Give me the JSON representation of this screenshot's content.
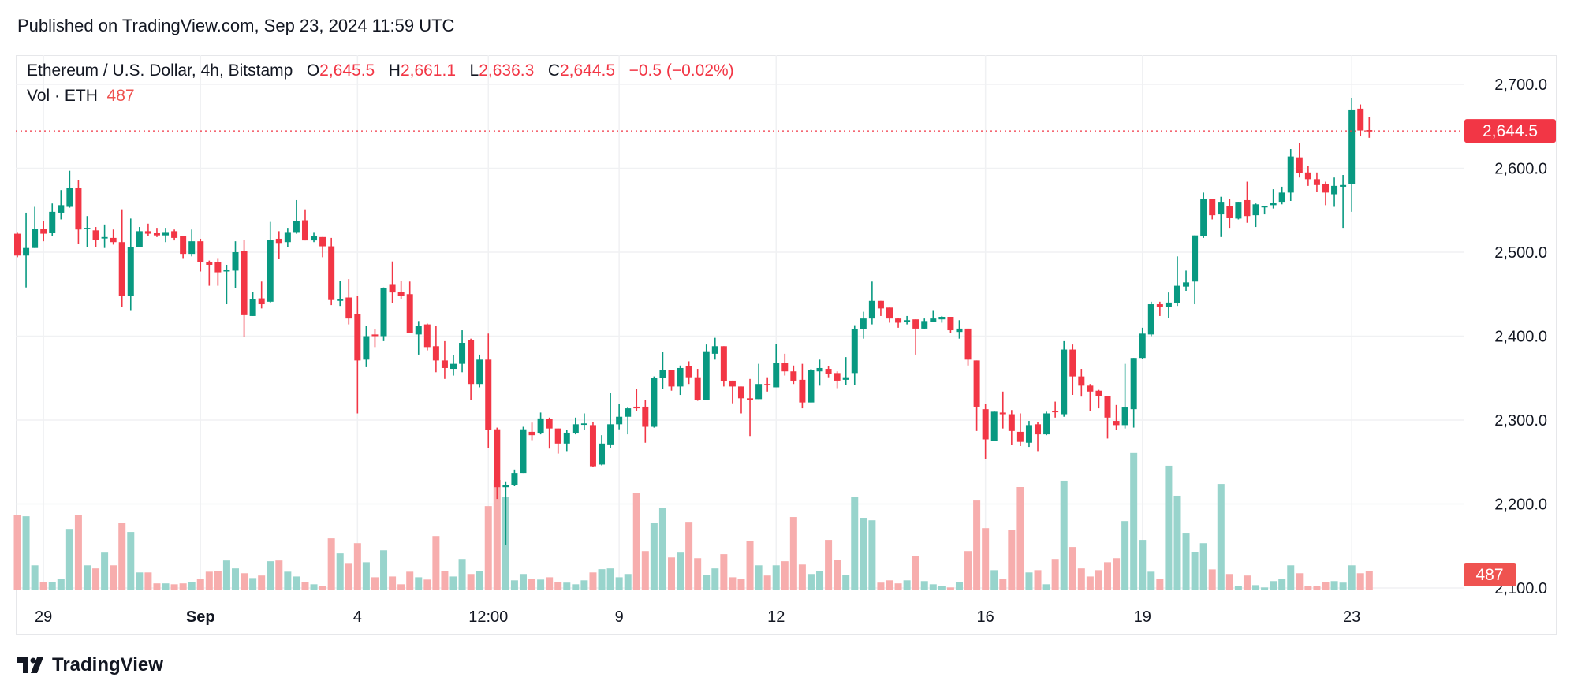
{
  "header": {
    "published": "Published on TradingView.com, Sep 23, 2024 11:59 UTC"
  },
  "legend": {
    "symbol": "Ethereum / U.S. Dollar, 4h, Bitstamp",
    "o_label": "O",
    "o_value": "2,645.5",
    "h_label": "H",
    "h_value": "2,661.1",
    "l_label": "L",
    "l_value": "2,636.3",
    "c_label": "C",
    "c_value": "2,644.5",
    "change": "−0.5 (−0.02%)",
    "vol_label": "Vol · ETH",
    "vol_value": "487"
  },
  "badges": {
    "last_price": "2,644.5",
    "last_volume": "487"
  },
  "logo": {
    "text": "TradingView"
  },
  "colors": {
    "up": "#089981",
    "down": "#f23645",
    "up_volume": "#92d2c9",
    "down_volume": "#f7a9a9",
    "grid": "#f0f1f3",
    "text": "#131722"
  },
  "chart_data": {
    "type": "candlestick",
    "interval": "4h",
    "last_price": 2644.5,
    "grid": true,
    "y_ticks": [
      "2,700.0",
      "2,600.0",
      "2,500.0",
      "2,400.0",
      "2,300.0",
      "2,200.0",
      "2,100.0"
    ],
    "y_tick_values": [
      2700,
      2600,
      2500,
      2400,
      2300,
      2200,
      2100
    ],
    "ylim": [
      2100,
      2700
    ],
    "x_ticks": [
      {
        "label": "29",
        "time": "08-29 00:00",
        "bold": false
      },
      {
        "label": "Sep",
        "time": "09-01 00:00",
        "bold": true
      },
      {
        "label": "4",
        "time": "09-04 00:00",
        "bold": false
      },
      {
        "label": "12:00",
        "time": "09-06 12:00",
        "bold": false
      },
      {
        "label": "9",
        "time": "09-09 00:00",
        "bold": false
      },
      {
        "label": "12",
        "time": "09-12 00:00",
        "bold": false
      },
      {
        "label": "16",
        "time": "09-16 00:00",
        "bold": false
      },
      {
        "label": "19",
        "time": "09-19 00:00",
        "bold": false
      },
      {
        "label": "23",
        "time": "09-23 00:00",
        "bold": false
      }
    ],
    "columns": [
      "time",
      "open",
      "high",
      "low",
      "close",
      "volume"
    ],
    "candles": [
      [
        "08-28 12:00",
        2522,
        2524,
        2494,
        2496,
        1945
      ],
      [
        "08-28 16:00",
        2496,
        2547,
        2458,
        2505,
        1904
      ],
      [
        "08-28 20:00",
        2505,
        2554,
        2505,
        2528,
        630
      ],
      [
        "08-29 00:00",
        2528,
        2537,
        2513,
        2522,
        200
      ],
      [
        "08-29 04:00",
        2523,
        2558,
        2519,
        2548,
        200
      ],
      [
        "08-29 08:00",
        2547,
        2574,
        2539,
        2556,
        280
      ],
      [
        "08-29 12:00",
        2554,
        2597,
        2553,
        2577,
        1575
      ],
      [
        "08-29 16:00",
        2577,
        2586,
        2510,
        2527,
        1945
      ],
      [
        "08-29 20:00",
        2528,
        2543,
        2506,
        2529,
        630
      ],
      [
        "08-30 00:00",
        2526,
        2530,
        2506,
        2515,
        550
      ],
      [
        "08-30 04:00",
        2517,
        2533,
        2505,
        2518,
        960
      ],
      [
        "08-30 08:00",
        2517,
        2527,
        2509,
        2512,
        630
      ],
      [
        "08-30 12:00",
        2512,
        2551,
        2435,
        2448,
        1740
      ],
      [
        "08-30 16:00",
        2448,
        2540,
        2431,
        2506,
        1495
      ],
      [
        "08-30 20:00",
        2506,
        2530,
        2506,
        2525,
        445
      ],
      [
        "08-31 00:00",
        2525,
        2534,
        2519,
        2522,
        445
      ],
      [
        "08-31 04:00",
        2523,
        2529,
        2518,
        2520,
        160
      ],
      [
        "08-31 08:00",
        2520,
        2529,
        2512,
        2524,
        160
      ],
      [
        "08-31 12:00",
        2525,
        2527,
        2514,
        2517,
        137
      ],
      [
        "08-31 16:00",
        2519,
        2519,
        2493,
        2498,
        160
      ],
      [
        "08-31 20:00",
        2498,
        2527,
        2495,
        2513,
        200
      ],
      [
        "09-01 00:00",
        2513,
        2516,
        2477,
        2488,
        280
      ],
      [
        "09-01 04:00",
        2488,
        2490,
        2460,
        2485,
        465
      ],
      [
        "09-01 08:00",
        2488,
        2493,
        2460,
        2476,
        485
      ],
      [
        "09-01 12:00",
        2477,
        2485,
        2438,
        2479,
        755
      ],
      [
        "09-01 16:00",
        2478,
        2513,
        2457,
        2500,
        550
      ],
      [
        "09-01 20:00",
        2501,
        2515,
        2399,
        2425,
        425
      ],
      [
        "09-02 00:00",
        2424,
        2453,
        2424,
        2444,
        300
      ],
      [
        "09-02 04:00",
        2445,
        2465,
        2433,
        2438,
        365
      ],
      [
        "09-02 08:00",
        2441,
        2536,
        2440,
        2515,
        735
      ],
      [
        "09-02 12:00",
        2516,
        2525,
        2492,
        2511,
        755
      ],
      [
        "09-02 16:00",
        2512,
        2529,
        2506,
        2524,
        465
      ],
      [
        "09-02 20:00",
        2524,
        2562,
        2522,
        2537,
        340
      ],
      [
        "09-03 00:00",
        2538,
        2551,
        2514,
        2514,
        200
      ],
      [
        "09-03 04:00",
        2514,
        2524,
        2512,
        2519,
        137
      ],
      [
        "09-03 08:00",
        2518,
        2518,
        2494,
        2507,
        95
      ],
      [
        "09-03 12:00",
        2507,
        2517,
        2437,
        2443,
        1330
      ],
      [
        "09-03 16:00",
        2442,
        2466,
        2436,
        2444,
        940
      ],
      [
        "09-03 20:00",
        2446,
        2468,
        2414,
        2421,
        690
      ],
      [
        "09-04 00:00",
        2426,
        2448,
        2308,
        2371,
        1205
      ],
      [
        "09-04 04:00",
        2372,
        2412,
        2363,
        2400,
        710
      ],
      [
        "09-04 08:00",
        2402,
        2408,
        2387,
        2400,
        320
      ],
      [
        "09-04 12:00",
        2400,
        2458,
        2394,
        2457,
        1020
      ],
      [
        "09-04 16:00",
        2462,
        2489,
        2439,
        2452,
        340
      ],
      [
        "09-04 20:00",
        2453,
        2466,
        2444,
        2448,
        137
      ],
      [
        "09-05 00:00",
        2450,
        2465,
        2404,
        2404,
        465
      ],
      [
        "09-05 04:00",
        2402,
        2418,
        2378,
        2412,
        320
      ],
      [
        "09-05 08:00",
        2414,
        2415,
        2383,
        2387,
        260
      ],
      [
        "09-05 12:00",
        2388,
        2412,
        2357,
        2371,
        1390
      ],
      [
        "09-05 16:00",
        2371,
        2394,
        2349,
        2362,
        485
      ],
      [
        "09-05 20:00",
        2361,
        2377,
        2353,
        2367,
        340
      ],
      [
        "09-06 00:00",
        2367,
        2407,
        2357,
        2392,
        795
      ],
      [
        "09-06 04:00",
        2395,
        2397,
        2324,
        2343,
        405
      ],
      [
        "09-06 08:00",
        2343,
        2378,
        2339,
        2372,
        485
      ],
      [
        "09-06 12:00",
        2372,
        2403,
        2267,
        2288,
        2170
      ],
      [
        "09-06 16:00",
        2289,
        2291,
        2206,
        2220,
        2850
      ],
      [
        "09-06 20:00",
        2220,
        2227,
        2151,
        2223,
        2400
      ],
      [
        "09-07 00:00",
        2223,
        2241,
        2222,
        2237,
        240
      ],
      [
        "09-07 04:00",
        2237,
        2292,
        2237,
        2289,
        405
      ],
      [
        "09-07 08:00",
        2286,
        2297,
        2276,
        2282,
        280
      ],
      [
        "09-07 12:00",
        2284,
        2309,
        2283,
        2302,
        260
      ],
      [
        "09-07 16:00",
        2301,
        2303,
        2266,
        2290,
        320
      ],
      [
        "09-07 20:00",
        2290,
        2290,
        2260,
        2272,
        200
      ],
      [
        "09-08 00:00",
        2272,
        2288,
        2263,
        2285,
        180
      ],
      [
        "09-08 04:00",
        2284,
        2303,
        2283,
        2295,
        137
      ],
      [
        "09-08 08:00",
        2295,
        2308,
        2288,
        2296,
        240
      ],
      [
        "09-08 12:00",
        2294,
        2298,
        2244,
        2245,
        445
      ],
      [
        "09-08 16:00",
        2247,
        2282,
        2246,
        2272,
        530
      ],
      [
        "09-08 20:00",
        2271,
        2332,
        2267,
        2295,
        550
      ],
      [
        "09-09 00:00",
        2295,
        2319,
        2289,
        2304,
        320
      ],
      [
        "09-09 04:00",
        2304,
        2315,
        2283,
        2314,
        405
      ],
      [
        "09-09 08:00",
        2316,
        2337,
        2311,
        2314,
        2520
      ],
      [
        "09-09 12:00",
        2316,
        2324,
        2273,
        2292,
        1000
      ],
      [
        "09-09 16:00",
        2292,
        2352,
        2291,
        2350,
        1740
      ],
      [
        "09-09 20:00",
        2350,
        2381,
        2337,
        2360,
        2130
      ],
      [
        "09-10 00:00",
        2360,
        2360,
        2335,
        2340,
        835
      ],
      [
        "09-10 04:00",
        2340,
        2365,
        2330,
        2362,
        960
      ],
      [
        "09-10 08:00",
        2364,
        2370,
        2343,
        2351,
        1760
      ],
      [
        "09-10 12:00",
        2351,
        2361,
        2323,
        2324,
        815
      ],
      [
        "09-10 16:00",
        2324,
        2390,
        2324,
        2382,
        385
      ],
      [
        "09-10 20:00",
        2379,
        2398,
        2372,
        2388,
        550
      ],
      [
        "09-11 00:00",
        2388,
        2388,
        2340,
        2346,
        920
      ],
      [
        "09-11 04:00",
        2347,
        2347,
        2320,
        2340,
        320
      ],
      [
        "09-11 08:00",
        2340,
        2340,
        2308,
        2326,
        280
      ],
      [
        "09-11 12:00",
        2326,
        2349,
        2281,
        2325,
        1265
      ],
      [
        "09-11 16:00",
        2325,
        2367,
        2325,
        2343,
        630
      ],
      [
        "09-11 20:00",
        2343,
        2351,
        2334,
        2342,
        365
      ],
      [
        "09-12 00:00",
        2339,
        2391,
        2339,
        2368,
        630
      ],
      [
        "09-12 04:00",
        2368,
        2379,
        2353,
        2358,
        735
      ],
      [
        "09-12 08:00",
        2358,
        2365,
        2343,
        2347,
        1885
      ],
      [
        "09-12 12:00",
        2348,
        2367,
        2314,
        2321,
        650
      ],
      [
        "09-12 16:00",
        2321,
        2361,
        2321,
        2360,
        405
      ],
      [
        "09-12 20:00",
        2358,
        2372,
        2341,
        2362,
        485
      ],
      [
        "09-13 00:00",
        2361,
        2364,
        2351,
        2355,
        1290
      ],
      [
        "09-13 04:00",
        2356,
        2358,
        2338,
        2347,
        775
      ],
      [
        "09-13 08:00",
        2348,
        2375,
        2342,
        2351,
        385
      ],
      [
        "09-13 12:00",
        2356,
        2413,
        2342,
        2408,
        2400
      ],
      [
        "09-13 16:00",
        2408,
        2429,
        2397,
        2421,
        1865
      ],
      [
        "09-13 20:00",
        2421,
        2465,
        2414,
        2442,
        1800
      ],
      [
        "09-14 00:00",
        2442,
        2442,
        2424,
        2433,
        180
      ],
      [
        "09-14 04:00",
        2434,
        2434,
        2416,
        2421,
        240
      ],
      [
        "09-14 08:00",
        2421,
        2422,
        2410,
        2416,
        160
      ],
      [
        "09-14 12:00",
        2417,
        2424,
        2414,
        2419,
        240
      ],
      [
        "09-14 16:00",
        2420,
        2420,
        2378,
        2409,
        875
      ],
      [
        "09-14 20:00",
        2409,
        2421,
        2408,
        2418,
        220
      ],
      [
        "09-15 00:00",
        2417,
        2431,
        2417,
        2421,
        137
      ],
      [
        "09-15 04:00",
        2420,
        2424,
        2416,
        2423,
        95
      ],
      [
        "09-15 08:00",
        2423,
        2423,
        2404,
        2407,
        55
      ],
      [
        "09-15 12:00",
        2405,
        2419,
        2397,
        2409,
        200
      ],
      [
        "09-15 16:00",
        2409,
        2409,
        2365,
        2372,
        1000
      ],
      [
        "09-15 20:00",
        2371,
        2371,
        2287,
        2316,
        2315
      ],
      [
        "09-16 00:00",
        2313,
        2319,
        2254,
        2277,
        1595
      ],
      [
        "09-16 04:00",
        2275,
        2311,
        2275,
        2310,
        505
      ],
      [
        "09-16 08:00",
        2309,
        2334,
        2290,
        2307,
        280
      ],
      [
        "09-16 12:00",
        2307,
        2312,
        2270,
        2287,
        1555
      ],
      [
        "09-16 16:00",
        2286,
        2308,
        2269,
        2274,
        2665
      ],
      [
        "09-16 20:00",
        2273,
        2299,
        2268,
        2294,
        445
      ],
      [
        "09-17 00:00",
        2295,
        2298,
        2263,
        2283,
        505
      ],
      [
        "09-17 04:00",
        2283,
        2310,
        2282,
        2308,
        137
      ],
      [
        "09-17 08:00",
        2311,
        2322,
        2303,
        2310,
        795
      ],
      [
        "09-17 12:00",
        2307,
        2394,
        2304,
        2384,
        2830
      ],
      [
        "09-17 16:00",
        2384,
        2390,
        2330,
        2352,
        1105
      ],
      [
        "09-17 20:00",
        2352,
        2361,
        2328,
        2341,
        550
      ],
      [
        "09-18 00:00",
        2341,
        2343,
        2311,
        2334,
        340
      ],
      [
        "09-18 04:00",
        2335,
        2336,
        2314,
        2329,
        505
      ],
      [
        "09-18 08:00",
        2329,
        2329,
        2278,
        2303,
        710
      ],
      [
        "09-18 12:00",
        2299,
        2318,
        2288,
        2294,
        815
      ],
      [
        "09-18 16:00",
        2294,
        2367,
        2290,
        2315,
        1780
      ],
      [
        "09-18 20:00",
        2313,
        2374,
        2291,
        2374,
        3550
      ],
      [
        "09-19 00:00",
        2374,
        2410,
        2373,
        2403,
        1290
      ],
      [
        "09-19 04:00",
        2402,
        2441,
        2400,
        2438,
        465
      ],
      [
        "09-19 08:00",
        2438,
        2441,
        2424,
        2435,
        280
      ],
      [
        "09-19 12:00",
        2435,
        2452,
        2422,
        2440,
        3220
      ],
      [
        "09-19 16:00",
        2439,
        2495,
        2436,
        2460,
        2440
      ],
      [
        "09-19 20:00",
        2459,
        2478,
        2454,
        2464,
        1475
      ],
      [
        "09-20 00:00",
        2465,
        2520,
        2438,
        2520,
        980
      ],
      [
        "09-20 04:00",
        2519,
        2571,
        2517,
        2563,
        1205
      ],
      [
        "09-20 08:00",
        2563,
        2563,
        2539,
        2544,
        525
      ],
      [
        "09-20 12:00",
        2545,
        2566,
        2518,
        2560,
        2745
      ],
      [
        "09-20 16:00",
        2555,
        2563,
        2529,
        2541,
        405
      ],
      [
        "09-20 20:00",
        2540,
        2560,
        2539,
        2560,
        95
      ],
      [
        "09-21 00:00",
        2562,
        2584,
        2535,
        2543,
        365
      ],
      [
        "09-21 04:00",
        2544,
        2558,
        2530,
        2557,
        115
      ],
      [
        "09-21 08:00",
        2554,
        2555,
        2545,
        2555,
        55
      ],
      [
        "09-21 12:00",
        2556,
        2575,
        2552,
        2559,
        220
      ],
      [
        "09-21 16:00",
        2560,
        2578,
        2557,
        2571,
        280
      ],
      [
        "09-21 20:00",
        2571,
        2623,
        2561,
        2614,
        630
      ],
      [
        "09-22 00:00",
        2613,
        2630,
        2589,
        2594,
        425
      ],
      [
        "09-22 04:00",
        2595,
        2603,
        2579,
        2587,
        95
      ],
      [
        "09-22 08:00",
        2587,
        2595,
        2572,
        2580,
        95
      ],
      [
        "09-22 12:00",
        2581,
        2584,
        2556,
        2571,
        200
      ],
      [
        "09-22 16:00",
        2569,
        2589,
        2554,
        2579,
        220
      ],
      [
        "09-22 20:00",
        2578,
        2592,
        2529,
        2580,
        180
      ],
      [
        "09-23 00:00",
        2581,
        2684,
        2548,
        2670,
        630
      ],
      [
        "09-23 04:00",
        2671,
        2676,
        2638,
        2645,
        425
      ],
      [
        "09-23 08:00",
        2645.5,
        2661.1,
        2636.3,
        2644.5,
        487
      ]
    ]
  }
}
